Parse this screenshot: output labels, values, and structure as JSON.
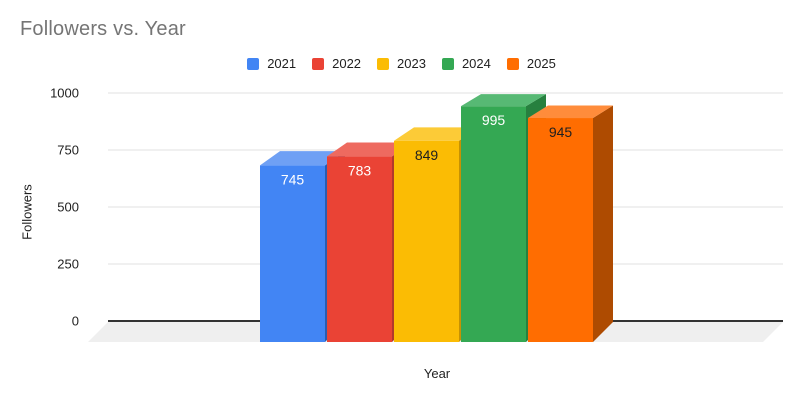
{
  "chart_data": {
    "type": "bar",
    "variant": "3d-column",
    "title": "Followers vs. Year",
    "xlabel": "Year",
    "ylabel": "Followers",
    "categories": [
      "2021",
      "2022",
      "2023",
      "2024",
      "2025"
    ],
    "values": [
      745,
      783,
      849,
      995,
      945
    ],
    "series": [
      {
        "label": "2021",
        "value": 745,
        "color": "#4285F4",
        "top_color": "#6FA0F4",
        "side_color": "#2A5DB0",
        "value_label_color": "#FFFFFF"
      },
      {
        "label": "2022",
        "value": 783,
        "color": "#EA4335",
        "top_color": "#EE6A5F",
        "side_color": "#B2392C",
        "value_label_color": "#FFFFFF"
      },
      {
        "label": "2023",
        "value": 849,
        "color": "#FBBC04",
        "top_color": "#FCCB37",
        "side_color": "#C69203",
        "value_label_color": "#1F1F1F"
      },
      {
        "label": "2024",
        "value": 995,
        "color": "#34A853",
        "top_color": "#57B974",
        "side_color": "#27803F",
        "value_label_color": "#FFFFFF"
      },
      {
        "label": "2025",
        "value": 945,
        "color": "#FF6D01",
        "top_color": "#FF8C3B",
        "side_color": "#AE4B01",
        "value_label_color": "#1F1F1F"
      }
    ],
    "yticks": [
      0,
      250,
      500,
      750,
      1000
    ],
    "ylim": [
      0,
      1000
    ],
    "grid": true,
    "legend_position": "top-center"
  },
  "colors": {
    "background": "#FFFFFF",
    "title_text": "#757575",
    "axis_text": "#1F1F1F",
    "gridline": "#E0E0E0",
    "baseline": "#333333",
    "floor": "#EFEFEF"
  }
}
